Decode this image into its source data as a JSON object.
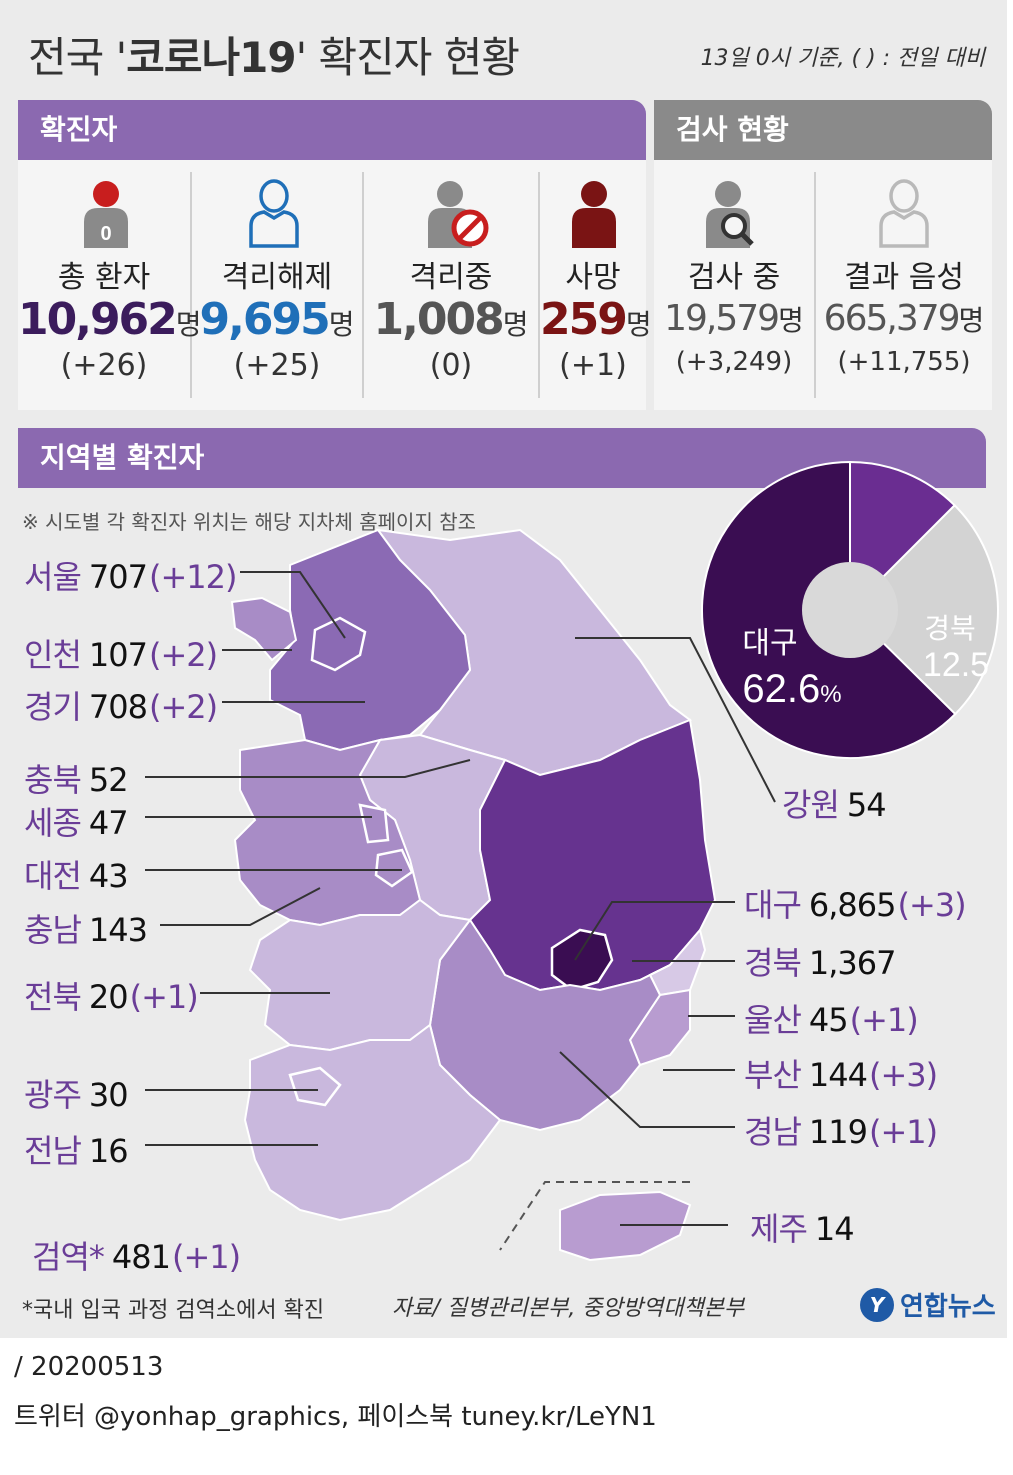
{
  "header": {
    "title_pre": "전국 '",
    "title_bold": "코로나19",
    "title_post": "' 확진자 현황",
    "as_of": "13일 0시 기준, ( ) : 전일 대비"
  },
  "confirmed_section": {
    "label": "확진자",
    "stats": [
      {
        "label": "총 환자",
        "value": "10,962",
        "unit": "명",
        "change": "(+26)",
        "color": "#3b1c5c",
        "icon": "patient-icon"
      },
      {
        "label": "격리해제",
        "value": "9,695",
        "unit": "명",
        "change": "(+25)",
        "color": "#1f6fb8",
        "icon": "person-outline-icon"
      },
      {
        "label": "격리중",
        "value": "1,008",
        "unit": "명",
        "change": "(0)",
        "color": "#555555",
        "icon": "person-blocked-icon"
      },
      {
        "label": "사망",
        "value": "259",
        "unit": "명",
        "change": "(+1)",
        "color": "#7a1414",
        "icon": "person-dark-red-icon"
      }
    ],
    "icon_badge": "0"
  },
  "test_section": {
    "label": "검사 현황",
    "stats": [
      {
        "label": "검사 중",
        "value": "19,579",
        "unit": "명",
        "change": "(+3,249)",
        "color": "#555555",
        "icon": "person-search-icon"
      },
      {
        "label": "결과 음성",
        "value": "665,379",
        "unit": "명",
        "change": "(+11,755)",
        "color": "#555555",
        "icon": "person-light-icon"
      }
    ]
  },
  "region_section": {
    "label": "지역별 확진자",
    "note": "※ 시도별 각 확진자 위치는 해당 지차체 홈페이지 참조"
  },
  "regions_left": [
    {
      "name": "서울",
      "count": "707",
      "change": "(+12)"
    },
    {
      "name": "인천",
      "count": "107",
      "change": "(+2)"
    },
    {
      "name": "경기",
      "count": "708",
      "change": "(+2)"
    },
    {
      "name": "충북",
      "count": "52",
      "change": ""
    },
    {
      "name": "세종",
      "count": "47",
      "change": ""
    },
    {
      "name": "대전",
      "count": "43",
      "change": ""
    },
    {
      "name": "충남",
      "count": "143",
      "change": ""
    },
    {
      "name": "전북",
      "count": "20",
      "change": "(+1)"
    },
    {
      "name": "광주",
      "count": "30",
      "change": ""
    },
    {
      "name": "전남",
      "count": "16",
      "change": ""
    },
    {
      "name": "검역*",
      "count": "481",
      "change": "(+1)"
    }
  ],
  "regions_right": [
    {
      "name": "강원",
      "count": "54",
      "change": ""
    },
    {
      "name": "대구",
      "count": "6,865",
      "change": "(+3)"
    },
    {
      "name": "경북",
      "count": "1,367",
      "change": ""
    },
    {
      "name": "울산",
      "count": "45",
      "change": "(+1)"
    },
    {
      "name": "부산",
      "count": "144",
      "change": "(+3)"
    },
    {
      "name": "경남",
      "count": "119",
      "change": "(+1)"
    },
    {
      "name": "제주",
      "count": "14",
      "change": ""
    }
  ],
  "chart_data": {
    "type": "pie",
    "slices": [
      {
        "label": "대구",
        "value": 62.6,
        "display": "62.6",
        "unit": "%",
        "color": "#3a0d52"
      },
      {
        "label": "경북",
        "value": 12.5,
        "display": "12.5",
        "unit": "",
        "color": "#6a2d91"
      },
      {
        "label": "",
        "value": 24.9,
        "display": "",
        "unit": "",
        "color": "#d3d3d3"
      }
    ]
  },
  "colors": {
    "purple_band": "#8b69b0",
    "gray_band": "#8a8a8a",
    "region_purple": "#6a3d97"
  },
  "footer": {
    "footnote": "*국내 입국 과정 검역소에서 확진",
    "source": "자료/ 질병관리본부, 중앙방역대책본부",
    "logo_text": "연합뉴스",
    "logo_glyph": "Y",
    "date_line": "/ 20200513",
    "social_line": "트위터 @yonhap_graphics, 페이스북 tuney.kr/LeYN1"
  }
}
